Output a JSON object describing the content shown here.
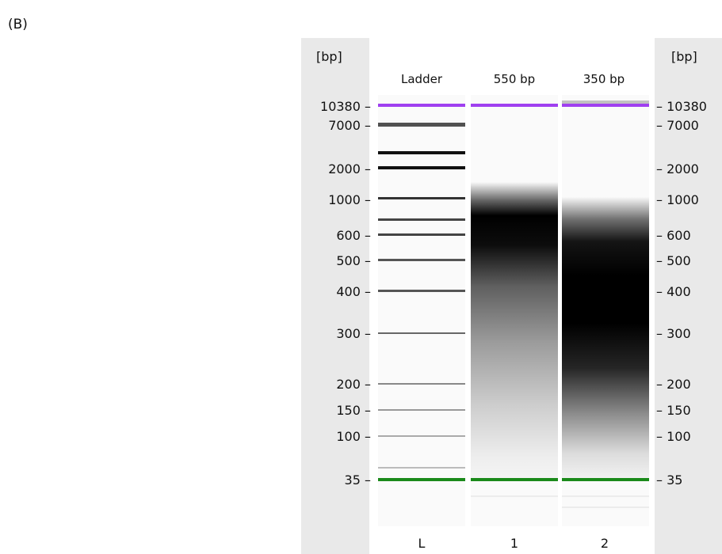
{
  "panel_label": "(B)",
  "axis_unit_left": "[bp]",
  "axis_unit_right": "[bp]",
  "lanes": [
    {
      "header": "Ladder",
      "footer": "L"
    },
    {
      "header": "550 bp",
      "footer": "1"
    },
    {
      "header": "350 bp",
      "footer": "2"
    }
  ],
  "size_ticks": [
    {
      "label": "10380",
      "bp": 10380
    },
    {
      "label": "7000",
      "bp": 7000
    },
    {
      "label": "2000",
      "bp": 2000
    },
    {
      "label": "1000",
      "bp": 1000
    },
    {
      "label": "600",
      "bp": 600
    },
    {
      "label": "500",
      "bp": 500
    },
    {
      "label": "400",
      "bp": 400
    },
    {
      "label": "300",
      "bp": 300
    },
    {
      "label": "200",
      "bp": 200
    },
    {
      "label": "150",
      "bp": 150
    },
    {
      "label": "100",
      "bp": 100
    },
    {
      "label": "35",
      "bp": 35
    }
  ],
  "upper_marker_color": "#a040f0",
  "lower_marker_color": "#1a8a1a"
}
